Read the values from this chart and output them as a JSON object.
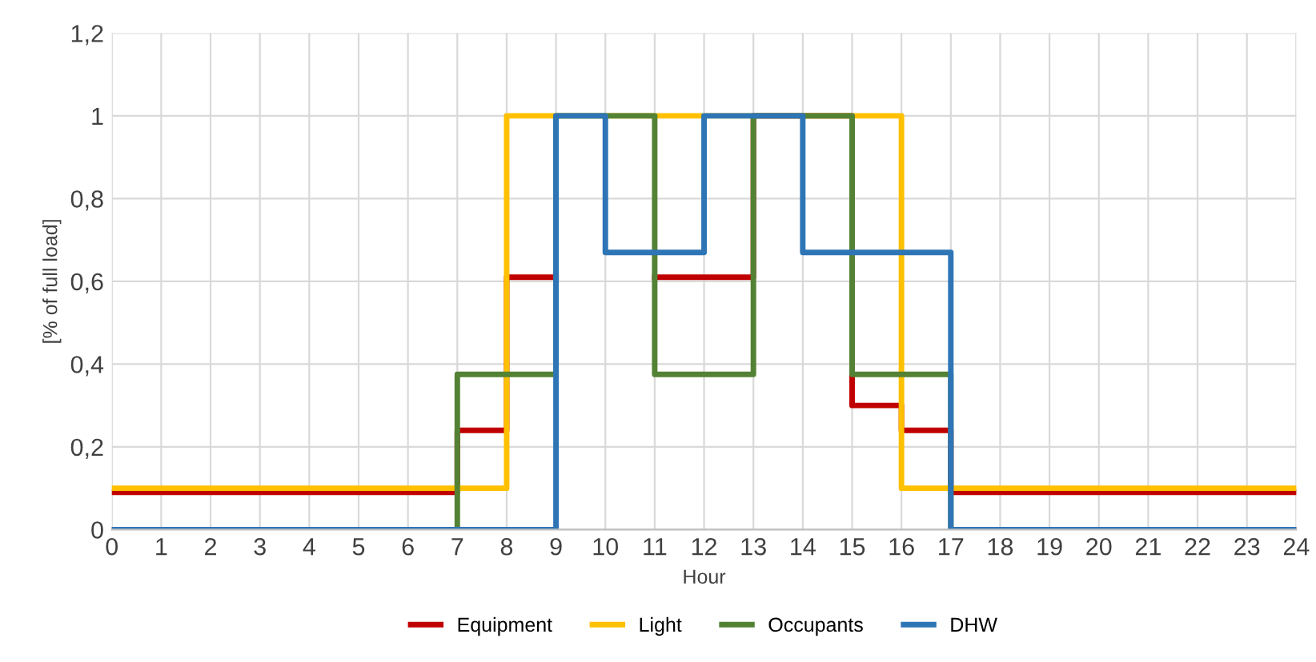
{
  "chart_data": {
    "type": "step",
    "xlabel": "Hour",
    "ylabel": "[% of full load]",
    "x": [
      0,
      1,
      2,
      3,
      4,
      5,
      6,
      7,
      8,
      9,
      10,
      11,
      12,
      13,
      14,
      15,
      16,
      17,
      18,
      19,
      20,
      21,
      22,
      23,
      24
    ],
    "series": [
      {
        "name": "Equipment",
        "color": "#c00000",
        "values": [
          0.09,
          0.09,
          0.09,
          0.09,
          0.09,
          0.09,
          0.09,
          0.24,
          0.61,
          null,
          null,
          0.61,
          0.61,
          1,
          1,
          0.3,
          0.24,
          0.09,
          0.09,
          0.09,
          0.09,
          0.09,
          0.09,
          0.09,
          0.09
        ]
      },
      {
        "name": "Light",
        "color": "#ffc000",
        "values": [
          0.1,
          0.1,
          0.1,
          0.1,
          0.1,
          0.1,
          0.1,
          0.1,
          1,
          1,
          1,
          1,
          1,
          1,
          1,
          1,
          0.1,
          0.1,
          0.1,
          0.1,
          0.1,
          0.1,
          0.1,
          0.1,
          0.1
        ]
      },
      {
        "name": "Occupants",
        "color": "#548235",
        "values": [
          0,
          0,
          0,
          0,
          0,
          0,
          0,
          0.375,
          0.375,
          1,
          1,
          0.375,
          0.375,
          1,
          1,
          0.375,
          0.375,
          0,
          0,
          0,
          0,
          0,
          0,
          0,
          0
        ]
      },
      {
        "name": "DHW",
        "color": "#2e75b6",
        "values": [
          0,
          0,
          0,
          0,
          0,
          0,
          0,
          0,
          0,
          1,
          0.67,
          0.67,
          1,
          1,
          0.67,
          0.67,
          0.67,
          0,
          0,
          0,
          0,
          0,
          0,
          0,
          0
        ]
      }
    ],
    "xlim": [
      0,
      24
    ],
    "xticks": [
      0,
      1,
      2,
      3,
      4,
      5,
      6,
      7,
      8,
      9,
      10,
      11,
      12,
      13,
      14,
      15,
      16,
      17,
      18,
      19,
      20,
      21,
      22,
      23,
      24
    ],
    "ylim": [
      0,
      1.2
    ],
    "yticks": [
      0,
      {
        "value": 0.2,
        "label": "0,2"
      },
      {
        "value": 0.4,
        "label": "0,4"
      },
      {
        "value": 0.6,
        "label": "0,6"
      },
      {
        "value": 0.8,
        "label": "0,8"
      },
      1,
      {
        "value": 1.2,
        "label": "1,2"
      }
    ],
    "grid": true,
    "legend": "bottom",
    "line_style": "solid"
  }
}
